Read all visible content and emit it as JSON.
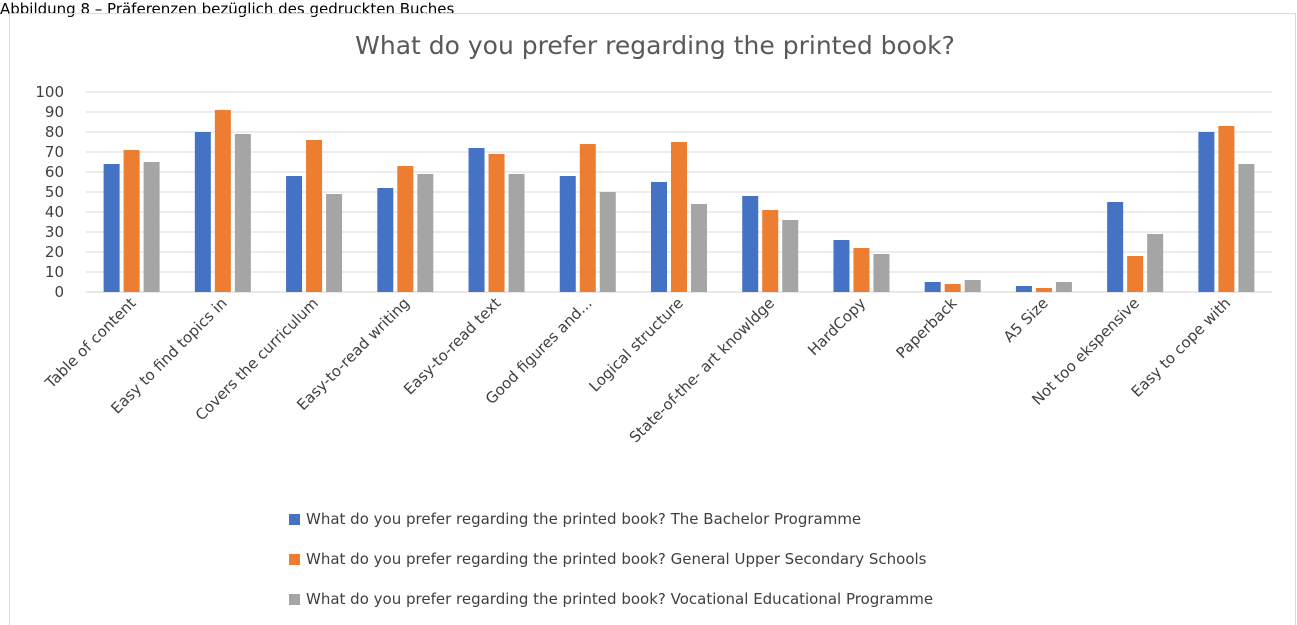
{
  "caption": "Abbildung 8 – Präferenzen bezüglich des gedruckten Buches",
  "chart_data": {
    "type": "bar",
    "title": "What do you prefer regarding the printed book?",
    "xlabel": "",
    "ylabel": "",
    "ylim": [
      0,
      100
    ],
    "yticks": [
      0,
      10,
      20,
      30,
      40,
      50,
      60,
      70,
      80,
      90,
      100
    ],
    "grid": true,
    "legend_position": "bottom",
    "categories": [
      "Table of content",
      "Easy to find topics in",
      "Covers the curriculum",
      "Easy-to-read writing",
      "Easy-to-read text",
      "Good figures and...",
      "Logical structure",
      "State-of-the- art knowldge",
      "HardCopy",
      "Paperback",
      "A5 Size",
      "Not too ekspensive",
      "Easy to cope with"
    ],
    "series": [
      {
        "name": "What do you prefer regarding the printed book? The Bachelor Programme",
        "color": "#4472c4",
        "values": [
          64,
          80,
          58,
          52,
          72,
          58,
          55,
          48,
          26,
          5,
          3,
          45,
          80
        ]
      },
      {
        "name": "What do you prefer regarding the printed book? General Upper Secondary Schools",
        "color": "#ed7d31",
        "values": [
          71,
          91,
          76,
          63,
          69,
          74,
          75,
          41,
          22,
          4,
          2,
          18,
          83
        ]
      },
      {
        "name": "What do you prefer regarding the printed book? Vocational Educational Programme",
        "color": "#a5a5a5",
        "values": [
          65,
          79,
          49,
          59,
          59,
          50,
          44,
          36,
          19,
          6,
          5,
          29,
          64
        ]
      }
    ]
  }
}
